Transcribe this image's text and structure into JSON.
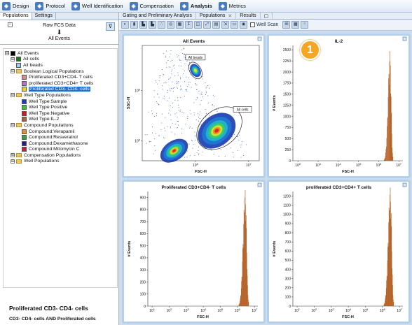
{
  "ribbon": {
    "tabs": [
      {
        "label": "Design",
        "icon": "design-icon"
      },
      {
        "label": "Protocol",
        "icon": "protocol-icon"
      },
      {
        "label": "Well Identification",
        "icon": "well-id-icon"
      },
      {
        "label": "Compensation",
        "icon": "compensation-icon"
      },
      {
        "label": "Analysis",
        "icon": "analysis-icon",
        "active": true
      },
      {
        "label": "Metrics",
        "icon": "metrics-icon"
      }
    ]
  },
  "left_panel": {
    "tabs": [
      "Populations",
      "Settings"
    ],
    "raw": {
      "title": "Raw FCS Data",
      "arrow": "⬇",
      "node": "All Events"
    },
    "tree": [
      {
        "label": "All Events",
        "exp": "⊟",
        "indent": 0,
        "swatch": "#000000"
      },
      {
        "label": "All cells",
        "exp": "⊞",
        "indent": 1,
        "swatch": "#1a7a1a"
      },
      {
        "label": "All beads",
        "exp": "",
        "indent": 1,
        "swatch": "#9ec9ee"
      },
      {
        "label": "Boolean Logical Populations",
        "exp": "⊟",
        "indent": 1,
        "folder": true
      },
      {
        "label": "Proliferated CD3+CD4- T cells",
        "exp": "",
        "indent": 2,
        "swatch": "#d98b8b"
      },
      {
        "label": "proliferated CD3+CD4+ T cells",
        "exp": "",
        "indent": 2,
        "swatch": "#c46ad0"
      },
      {
        "label": "Proliferated CD3- CD4- cells",
        "exp": "",
        "indent": 2,
        "swatch": "#f2d400",
        "selected": true
      },
      {
        "label": "Well Type Populations",
        "exp": "⊟",
        "indent": 1,
        "folder": true
      },
      {
        "label": "Well Type:Sample",
        "exp": "",
        "indent": 2,
        "swatch": "#1a3ccc"
      },
      {
        "label": "Well Type:Positive",
        "exp": "",
        "indent": 2,
        "swatch": "#32c832"
      },
      {
        "label": "Well Type:Negative",
        "exp": "",
        "indent": 2,
        "swatch": "#c81e1e"
      },
      {
        "label": "Well Type:IL-2",
        "exp": "",
        "indent": 2,
        "swatch": "#a0683c"
      },
      {
        "label": "Compound Populations",
        "exp": "⊟",
        "indent": 1,
        "folder": true
      },
      {
        "label": "Compound:Verapamil",
        "exp": "",
        "indent": 2,
        "swatch": "#f08c28"
      },
      {
        "label": "Compound:Resveratrol",
        "exp": "",
        "indent": 2,
        "swatch": "#32a046"
      },
      {
        "label": "Compound:Dexamethasone",
        "exp": "",
        "indent": 2,
        "swatch": "#1e1e8c"
      },
      {
        "label": "Compound:Mitomycin C",
        "exp": "",
        "indent": 2,
        "swatch": "#c81e3c"
      },
      {
        "label": "Compensation Populations",
        "exp": "⊞",
        "indent": 1,
        "folder": true
      },
      {
        "label": "Well Populations",
        "exp": "⊞",
        "indent": 1,
        "folder": true
      }
    ],
    "selected_title": "Proliferated CD3- CD4- cells",
    "selected_definition": "CD3- CD4- cells AND Proliferated cells"
  },
  "right_panel": {
    "doc_tabs": [
      {
        "label": "Gating and Preliminary Analysis",
        "close": ""
      },
      {
        "label": "Populations",
        "close": "✕"
      },
      {
        "label": "Results",
        "close": ""
      }
    ],
    "well_scan_label": "Well Scan"
  },
  "badge": "1",
  "chart_data": [
    {
      "type": "scatter",
      "title": "All Events",
      "xlabel": "FSC-H",
      "ylabel": "SSC-H",
      "xscale": "log",
      "yscale": "log",
      "xticks": [
        "10^6",
        "10^7"
      ],
      "yticks": [
        "10^5",
        "10^6"
      ],
      "gates": [
        "All beads",
        "All cells"
      ],
      "clusters": [
        {
          "name": "cells",
          "x_center_log": 6.4,
          "y_center_log": 5.2
        },
        {
          "name": "debris",
          "x_center_log": 5.6,
          "y_center_log": 4.8
        },
        {
          "name": "beads",
          "x_center_log": 6.0,
          "y_center_log": 6.4
        }
      ]
    },
    {
      "type": "histogram",
      "title": "IL-2",
      "xlabel": "FSC-H",
      "ylabel": "# Events",
      "xscale": "log",
      "xticks": [
        "10^2",
        "10^3",
        "10^4",
        "10^5",
        "10^6",
        "10^7"
      ],
      "yticks": [
        0,
        250,
        500,
        750,
        1000,
        1250,
        1500,
        1750,
        2000,
        2250,
        2500
      ],
      "ylim": [
        0,
        2600
      ],
      "peak_x_log": 6.55,
      "peak_height": 2150,
      "peak_width_log": 0.09,
      "color": "#b5652a"
    },
    {
      "type": "histogram",
      "title": "Proliferated CD3+CD4- T cells",
      "xlabel": "FSC-H",
      "ylabel": "# Events",
      "xscale": "log",
      "xticks": [
        "10^1",
        "10^2",
        "10^3",
        "10^4",
        "10^5",
        "10^6",
        "10^7"
      ],
      "yticks": [
        0,
        100,
        200,
        300,
        400,
        500,
        600,
        700,
        800,
        900
      ],
      "ylim": [
        0,
        950
      ],
      "peak_x_log": 6.45,
      "peak_height": 840,
      "peak_width_log": 0.12,
      "color": "#b5652a"
    },
    {
      "type": "histogram",
      "title": "proliferated CD3+CD4+ T cells",
      "xlabel": "FSC-H",
      "ylabel": "# Events",
      "xscale": "log",
      "xticks": [
        "10^1",
        "10^2",
        "10^3",
        "10^4",
        "10^5",
        "10^6",
        "10^7"
      ],
      "yticks": [
        0,
        100,
        200,
        300,
        400,
        500,
        600,
        700,
        800,
        900,
        1000,
        1100,
        1200
      ],
      "ylim": [
        0,
        1250
      ],
      "peak_x_log": 6.45,
      "peak_height": 1130,
      "peak_width_log": 0.12,
      "color": "#b5652a"
    }
  ]
}
